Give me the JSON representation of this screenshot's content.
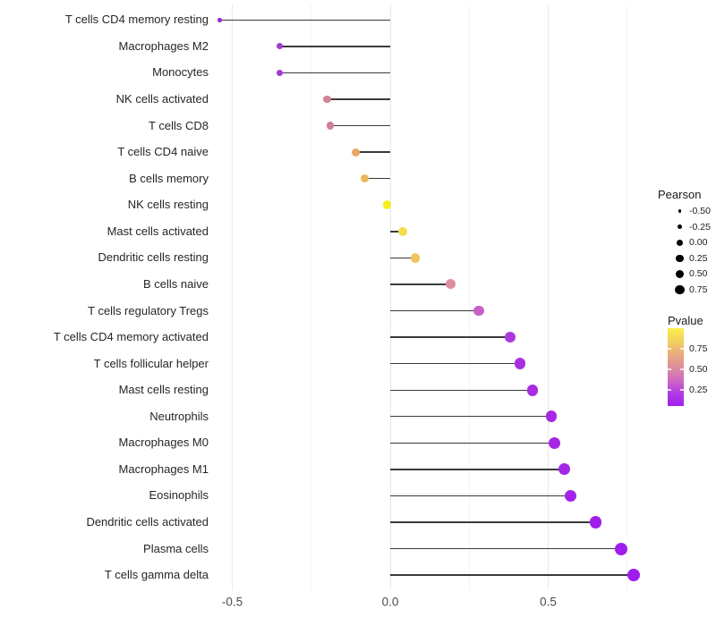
{
  "chart_data": {
    "type": "lollipop",
    "orientation": "horizontal",
    "title": "",
    "xlabel": "",
    "ylabel": "",
    "xlim": [
      -0.55,
      0.81
    ],
    "grid": true,
    "x_ticks": [
      "-0.5",
      "0.0",
      "0.5"
    ],
    "x_tick_values": [
      -0.5,
      0.0,
      0.5
    ],
    "x_minor_gridlines": [
      -0.25,
      0.25,
      0.75
    ],
    "rows": [
      {
        "label": "T cells CD4 memory resting",
        "pearson": -0.54,
        "pvalue_est": 0.05,
        "color": "#9d27d8"
      },
      {
        "label": "Macrophages M2",
        "pearson": -0.35,
        "pvalue_est": 0.1,
        "color": "#a63ad2"
      },
      {
        "label": "Monocytes",
        "pearson": -0.35,
        "pvalue_est": 0.1,
        "color": "#a639d3"
      },
      {
        "label": "NK cells activated",
        "pearson": -0.2,
        "pvalue_est": 0.45,
        "color": "#d08297"
      },
      {
        "label": "T cells CD8",
        "pearson": -0.19,
        "pvalue_est": 0.45,
        "color": "#d08197"
      },
      {
        "label": "T cells CD4 naive",
        "pearson": -0.11,
        "pvalue_est": 0.65,
        "color": "#e6a765"
      },
      {
        "label": "B cells memory",
        "pearson": -0.08,
        "pvalue_est": 0.72,
        "color": "#ebb95a"
      },
      {
        "label": "NK cells resting",
        "pearson": -0.01,
        "pvalue_est": 0.97,
        "color": "#f7ed21"
      },
      {
        "label": "Mast cells activated",
        "pearson": 0.04,
        "pvalue_est": 0.85,
        "color": "#f4de4b"
      },
      {
        "label": "Dendritic cells resting",
        "pearson": 0.08,
        "pvalue_est": 0.73,
        "color": "#eec45f"
      },
      {
        "label": "B cells naive",
        "pearson": 0.19,
        "pvalue_est": 0.5,
        "color": "#dc8f9e"
      },
      {
        "label": "T cells regulatory  Tregs",
        "pearson": 0.28,
        "pvalue_est": 0.3,
        "color": "#c95fc6"
      },
      {
        "label": "T cells CD4 memory activated",
        "pearson": 0.38,
        "pvalue_est": 0.15,
        "color": "#ac38dc"
      },
      {
        "label": "T cells follicular helper",
        "pearson": 0.41,
        "pvalue_est": 0.12,
        "color": "#a930e0"
      },
      {
        "label": "Mast cells resting",
        "pearson": 0.45,
        "pvalue_est": 0.1,
        "color": "#a72ce2"
      },
      {
        "label": "Neutrophils",
        "pearson": 0.51,
        "pvalue_est": 0.07,
        "color": "#a628e4"
      },
      {
        "label": "Macrophages M0",
        "pearson": 0.52,
        "pvalue_est": 0.06,
        "color": "#a526e5"
      },
      {
        "label": "Macrophages M1",
        "pearson": 0.55,
        "pvalue_est": 0.05,
        "color": "#a424e7"
      },
      {
        "label": "Eosinophils",
        "pearson": 0.57,
        "pvalue_est": 0.04,
        "color": "#a322e8"
      },
      {
        "label": "Dendritic cells activated",
        "pearson": 0.65,
        "pvalue_est": 0.03,
        "color": "#a21fea"
      },
      {
        "label": "Plasma cells",
        "pearson": 0.73,
        "pvalue_est": 0.02,
        "color": "#a11deb"
      },
      {
        "label": "T cells gamma delta",
        "pearson": 0.77,
        "pvalue_est": 0.01,
        "color": "#a01bec"
      }
    ],
    "legend": {
      "size": {
        "title": "Pearson",
        "position": "right",
        "tick_labels": [
          "-0.50",
          "-0.25",
          "0.00",
          "0.25",
          "0.50",
          "0.75"
        ],
        "tick_values": [
          -0.5,
          -0.25,
          0.0,
          0.25,
          0.5,
          0.75
        ],
        "key_color": "#000000"
      },
      "color": {
        "title": "Pvalue",
        "position": "right",
        "tick_labels": [
          "0.75",
          "0.50",
          "0.25"
        ],
        "tick_values": [
          0.75,
          0.5,
          0.25
        ],
        "range_top_to_bottom": [
          1.0,
          0.05
        ],
        "gradient_top_to_bottom": [
          "#fbf14a",
          "#f2d05f",
          "#e8ac7f",
          "#dd8f9d",
          "#cf6bc1",
          "#b33be5",
          "#a21ef0"
        ]
      }
    },
    "style": {
      "background": "#ffffff",
      "stem_color": "#3a3a3a",
      "major_grid_color": "#e9e9e9",
      "minor_grid_color": "#f5f5f5",
      "axis_text_color": "#4d4d4d",
      "y_label_color": "#262626"
    }
  }
}
